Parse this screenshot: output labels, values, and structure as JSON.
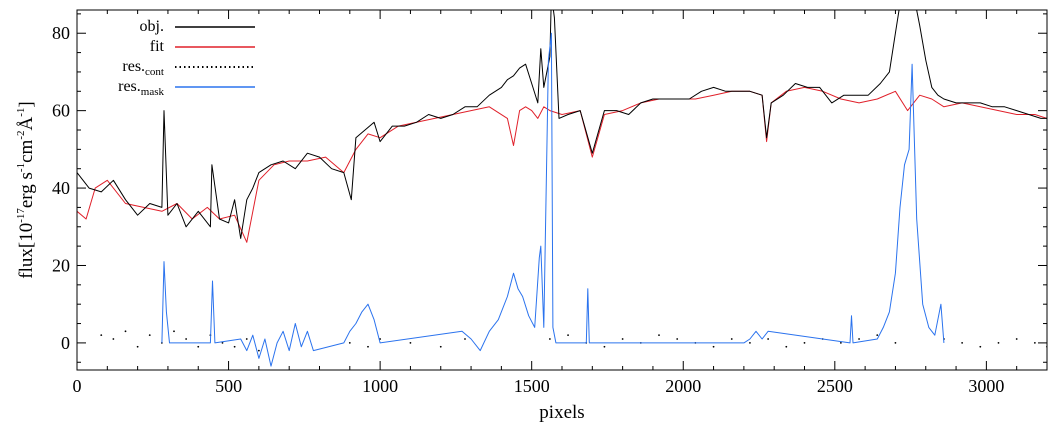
{
  "chart_data": {
    "type": "line",
    "title": "",
    "xlabel": "pixels",
    "ylabel": {
      "prefix": "flux[10",
      "exp1": "-17",
      "mid1": "erg s",
      "exp2": "-1",
      "mid2": "cm",
      "exp3": "-2",
      "angstrom": "Å",
      "exp4": "-1",
      "suffix": "]"
    },
    "xlim": [
      0,
      3200
    ],
    "ylim": [
      -7,
      86
    ],
    "xticks": [
      0,
      500,
      1000,
      1500,
      2000,
      2500,
      3000
    ],
    "yticks": [
      0,
      20,
      40,
      60,
      80
    ],
    "grid": false,
    "legend_position": "top-left",
    "series": [
      {
        "name": "obj.",
        "color": "#000000",
        "style": "solid",
        "x": [
          0,
          40,
          80,
          120,
          160,
          200,
          240,
          280,
          287,
          300,
          330,
          360,
          400,
          440,
          445,
          470,
          500,
          520,
          540,
          560,
          580,
          600,
          640,
          680,
          720,
          760,
          800,
          840,
          880,
          905,
          920,
          950,
          980,
          1000,
          1040,
          1080,
          1120,
          1160,
          1200,
          1240,
          1280,
          1320,
          1360,
          1400,
          1420,
          1440,
          1460,
          1480,
          1500,
          1520,
          1530,
          1540,
          1560,
          1565,
          1575,
          1590,
          1620,
          1660,
          1700,
          1740,
          1780,
          1820,
          1860,
          1900,
          1940,
          1980,
          2020,
          2060,
          2100,
          2140,
          2180,
          2220,
          2260,
          2275,
          2290,
          2330,
          2370,
          2410,
          2450,
          2490,
          2530,
          2570,
          2610,
          2650,
          2680,
          2700,
          2720,
          2740,
          2760,
          2780,
          2800,
          2820,
          2840,
          2860,
          2900,
          2940,
          2980,
          3020,
          3060,
          3100,
          3140,
          3180,
          3200
        ],
        "y": [
          44,
          40,
          39,
          42,
          37,
          33,
          36,
          35,
          60,
          33,
          36,
          30,
          34,
          30,
          46,
          32,
          31,
          37,
          27,
          37,
          40,
          44,
          46,
          47,
          45,
          49,
          48,
          45,
          44,
          37,
          53,
          55,
          57,
          52,
          56,
          56,
          57,
          59,
          58,
          59,
          61,
          61,
          64,
          66,
          68,
          69,
          71,
          72,
          67,
          62,
          76,
          66,
          74,
          90,
          84,
          58,
          59,
          60,
          49,
          60,
          60,
          59,
          62,
          63,
          63,
          63,
          63,
          65,
          66,
          65,
          65,
          65,
          64,
          53,
          62,
          64,
          67,
          66,
          66,
          62,
          64,
          64,
          64,
          67,
          70,
          80,
          90,
          88,
          90,
          82,
          73,
          66,
          64,
          63,
          62,
          62,
          62,
          61,
          61,
          60,
          59,
          58,
          58
        ]
      },
      {
        "name": "fit",
        "color": "#e0202a",
        "style": "solid",
        "x": [
          0,
          30,
          60,
          100,
          160,
          220,
          280,
          330,
          380,
          430,
          470,
          520,
          560,
          600,
          650,
          700,
          760,
          820,
          880,
          920,
          960,
          1000,
          1060,
          1120,
          1180,
          1240,
          1300,
          1360,
          1420,
          1440,
          1460,
          1480,
          1500,
          1520,
          1540,
          1560,
          1600,
          1660,
          1700,
          1740,
          1800,
          1860,
          1920,
          1980,
          2040,
          2100,
          2160,
          2220,
          2260,
          2275,
          2290,
          2340,
          2400,
          2460,
          2520,
          2580,
          2640,
          2700,
          2740,
          2760,
          2780,
          2820,
          2860,
          2920,
          2980,
          3040,
          3100,
          3160,
          3200
        ],
        "y": [
          34,
          32,
          40,
          42,
          36,
          35,
          34,
          36,
          32,
          35,
          32,
          33,
          26,
          42,
          46,
          47,
          47,
          48,
          44,
          50,
          54,
          53,
          56,
          57,
          58,
          59,
          60,
          61,
          58,
          51,
          60,
          61,
          60,
          58,
          61,
          60,
          59,
          60,
          48,
          59,
          60,
          62,
          63,
          63,
          63,
          64,
          65,
          65,
          64,
          52,
          62,
          65,
          66,
          65,
          63,
          62,
          63,
          65,
          60,
          62,
          64,
          63,
          61,
          62,
          61,
          60,
          59,
          59,
          58
        ]
      },
      {
        "name": "res.cont",
        "color": "#000000",
        "style": "dotted",
        "x": [
          80,
          120,
          160,
          200,
          240,
          280,
          320,
          360,
          400,
          440,
          480,
          520,
          560,
          600,
          900,
          960,
          1000,
          1100,
          1200,
          1280,
          1560,
          1620,
          1680,
          1740,
          1800,
          1860,
          1920,
          1980,
          2040,
          2100,
          2160,
          2220,
          2280,
          2340,
          2400,
          2460,
          2520,
          2580,
          2640,
          2700,
          2860,
          2920,
          2980,
          3040,
          3100,
          3160,
          3200
        ],
        "y": [
          2,
          1,
          3,
          -1,
          2,
          0,
          3,
          1,
          -1,
          2,
          0,
          -1,
          1,
          -2,
          0,
          -1,
          1,
          0,
          -1,
          1,
          1,
          2,
          0,
          -1,
          1,
          0,
          2,
          1,
          0,
          -1,
          1,
          0,
          1,
          -1,
          0,
          1,
          0,
          1,
          2,
          0,
          1,
          0,
          -1,
          0,
          1,
          0,
          -1
        ]
      },
      {
        "name": "res.mask",
        "color": "#2b73ee",
        "style": "solid",
        "x": [
          280,
          287,
          295,
          305,
          440,
          447,
          455,
          540,
          560,
          580,
          600,
          620,
          640,
          660,
          680,
          700,
          720,
          740,
          760,
          780,
          880,
          900,
          920,
          940,
          960,
          980,
          1000,
          1270,
          1300,
          1330,
          1360,
          1390,
          1420,
          1440,
          1455,
          1470,
          1490,
          1510,
          1525,
          1530,
          1540,
          1555,
          1565,
          1570,
          1580,
          1680,
          1685,
          1690,
          2200,
          2220,
          2240,
          2260,
          2280,
          2550,
          2555,
          2560,
          2640,
          2660,
          2680,
          2700,
          2715,
          2730,
          2745,
          2755,
          2770,
          2790,
          2810,
          2830,
          2850,
          2860
        ],
        "y": [
          0,
          21,
          8,
          0,
          0,
          16,
          0,
          1,
          -2,
          2,
          -4,
          1,
          -6,
          0,
          3,
          -2,
          5,
          -1,
          3,
          -2,
          0,
          3,
          5,
          8,
          10,
          6,
          0,
          3,
          1,
          -2,
          3,
          6,
          12,
          18,
          14,
          12,
          7,
          4,
          22,
          25,
          4,
          73,
          80,
          4,
          0,
          0,
          14,
          0,
          0,
          1,
          3,
          1,
          3,
          0,
          7,
          0,
          1,
          4,
          8,
          18,
          35,
          46,
          50,
          72,
          32,
          10,
          4,
          2,
          10,
          0
        ]
      }
    ],
    "legend": [
      {
        "label": "obj.",
        "sub": ""
      },
      {
        "label": "fit",
        "sub": ""
      },
      {
        "label": "res.",
        "sub": "cont"
      },
      {
        "label": "res.",
        "sub": "mask"
      }
    ]
  }
}
